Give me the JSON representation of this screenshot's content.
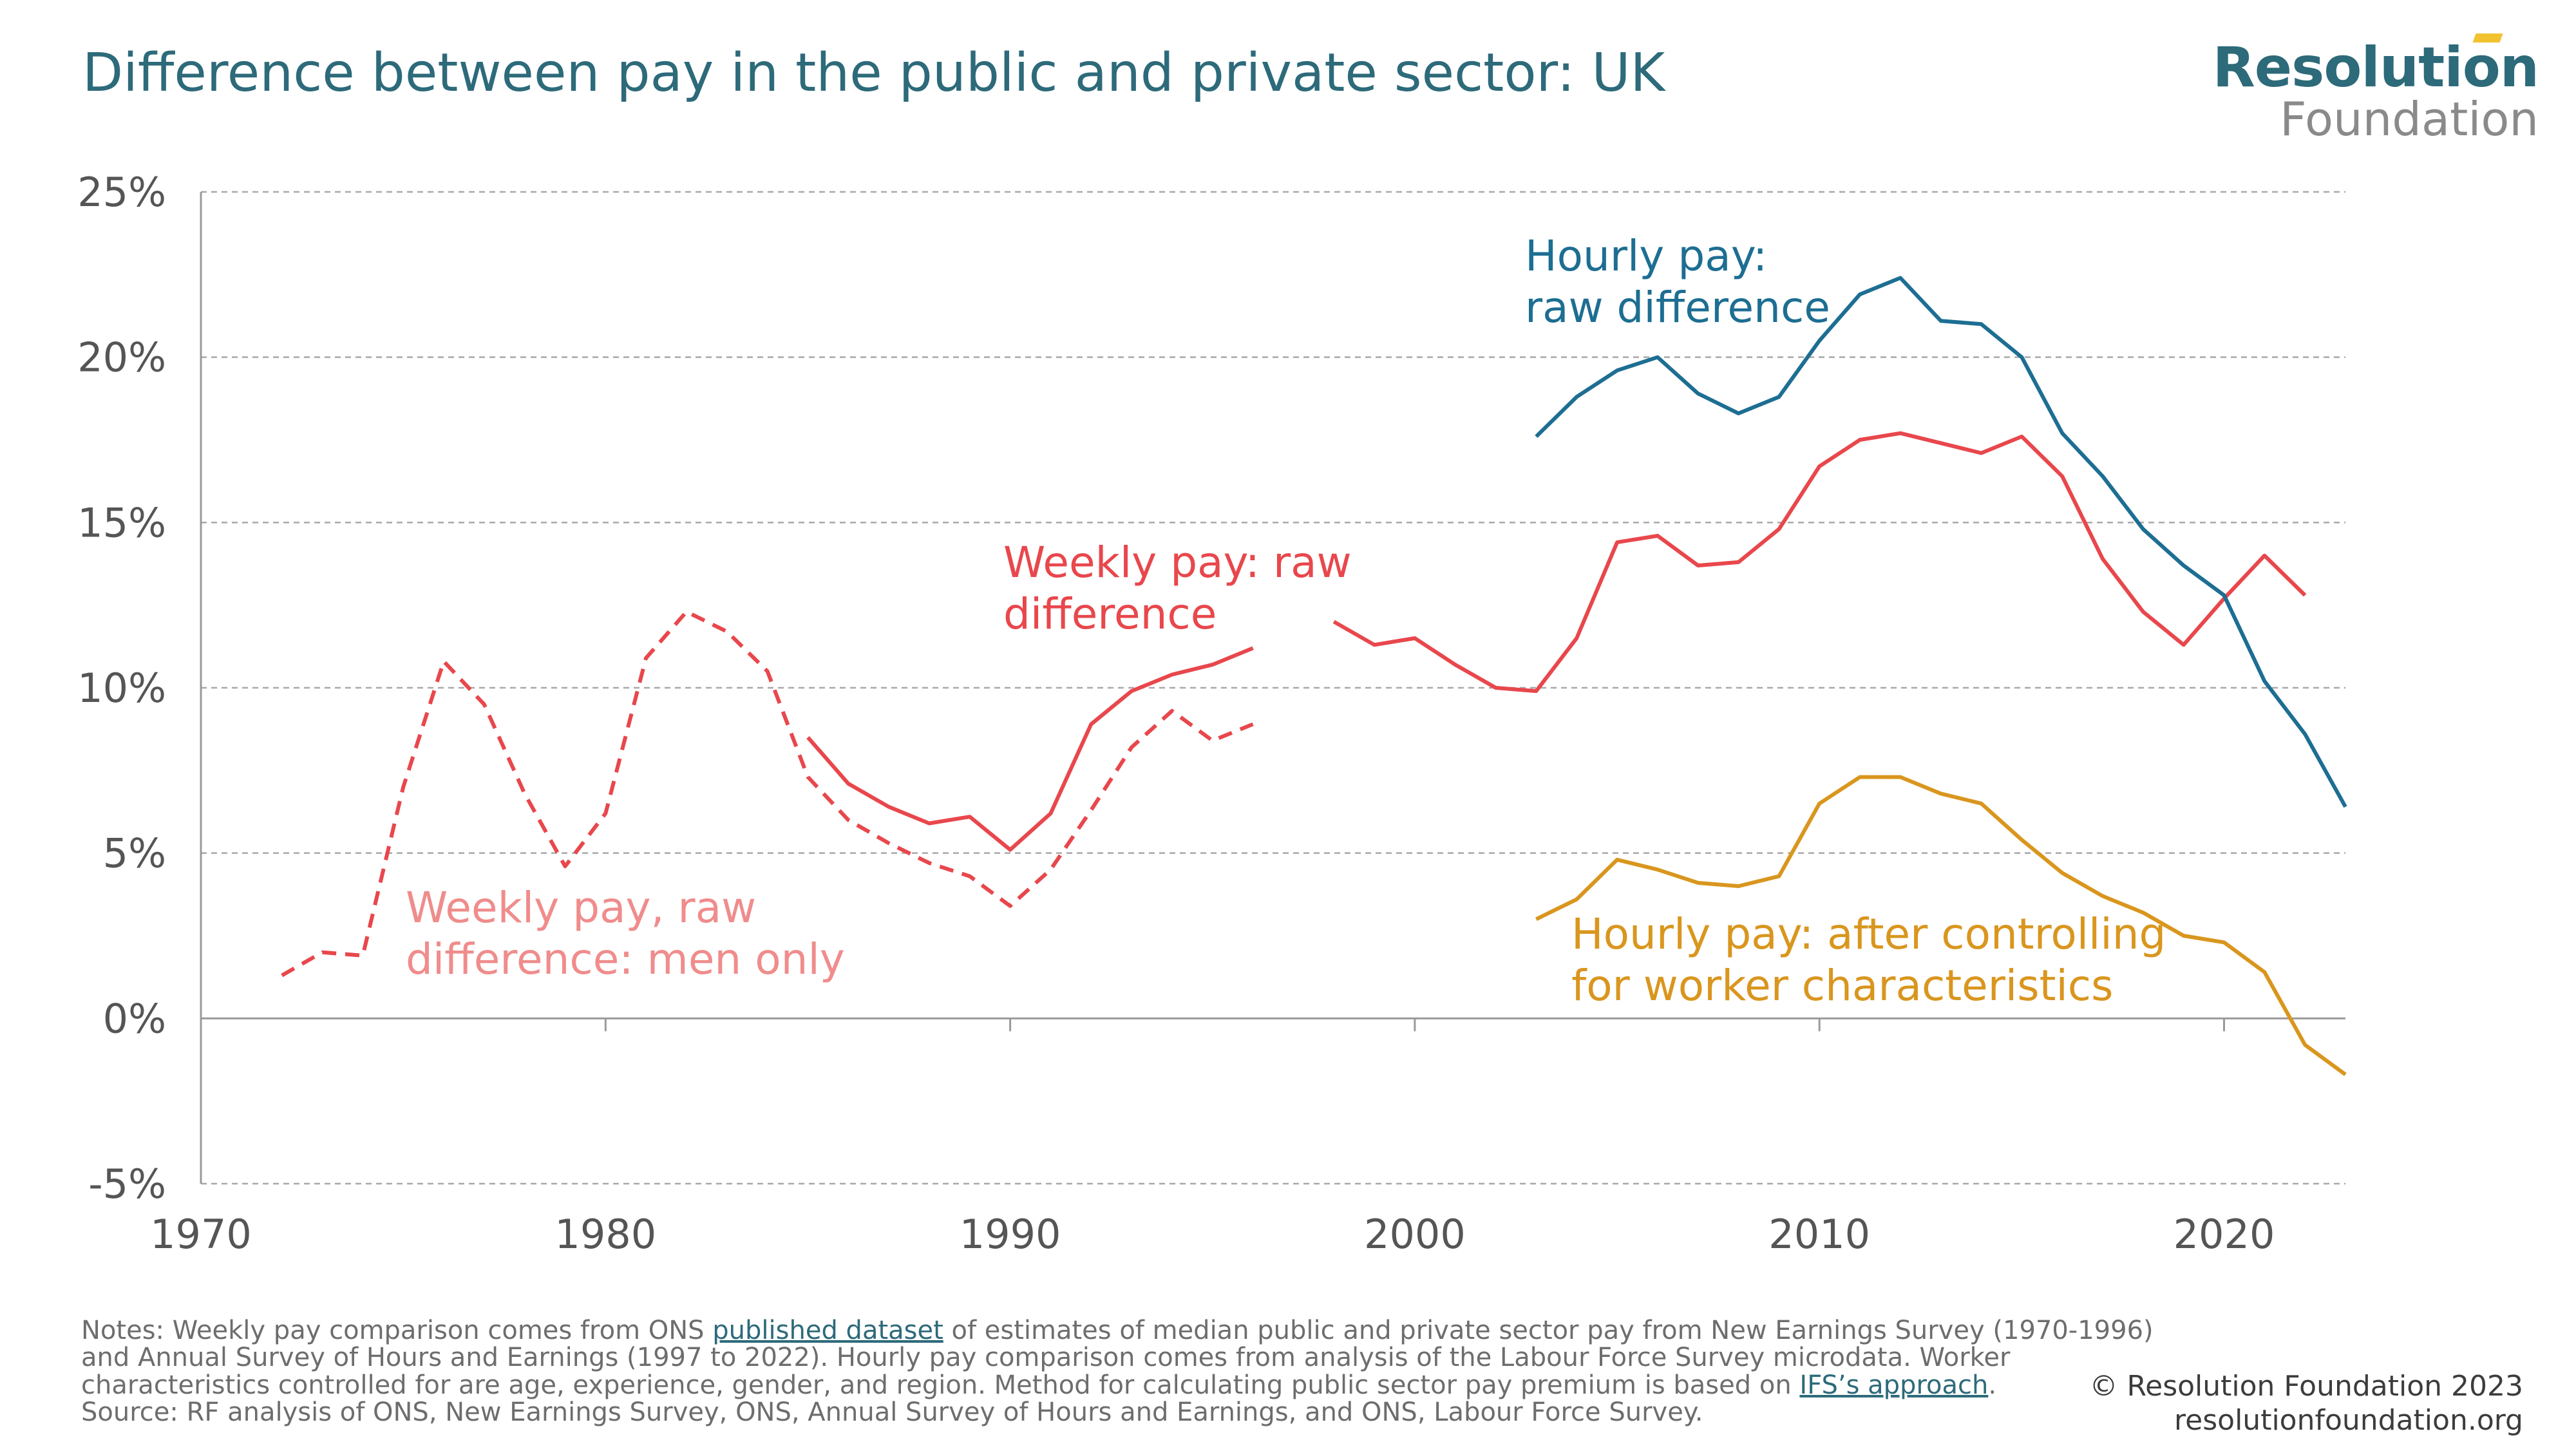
{
  "header": {
    "title": "Difference between pay in the public and private sector: UK",
    "logo_top": "Resolution",
    "logo_bottom": "Foundation"
  },
  "footer": {
    "notes_1": "Notes: Weekly pay comparison comes from ONS ",
    "link_1": "published dataset",
    "notes_2": " of estimates of median public and private sector pay from New Earnings Survey (1970-1996) and Annual Survey of Hours and Earnings (1997 to 2022). Hourly pay comparison comes from analysis of the Labour Force Survey microdata. Worker characteristics controlled for are age, experience, gender, and region. Method for calculating public sector pay premium is based on ",
    "link_2": "IFS’s approach",
    "notes_3": ".",
    "source": "Source: RF analysis of ONS, New Earnings Survey, ONS, Annual Survey of Hours and Earnings, and ONS, Labour Force Survey.",
    "copyright": "© Resolution Foundation 2023",
    "website": "resolutionfoundation.org"
  },
  "chart_data": {
    "type": "line",
    "title": "Difference between pay in the public and private sector: UK",
    "xlabel": "",
    "ylabel": "",
    "xlim": [
      1970,
      2023
    ],
    "ylim": [
      -5,
      25
    ],
    "x_ticks": [
      1970,
      1980,
      1990,
      2000,
      2010,
      2020
    ],
    "y_ticks": [
      25,
      20,
      15,
      10,
      5,
      0,
      -5
    ],
    "y_tick_labels": [
      "25%",
      "20%",
      "15%",
      "10%",
      "5%",
      "0%",
      "-5%"
    ],
    "grid": "horizontal dashed",
    "legend": "direct labels",
    "series": [
      {
        "label_lines": [
          "Weekly pay, raw",
          "difference: men only"
        ],
        "color": "#f08c8c",
        "line_color": "#e8474c",
        "style": "dashed",
        "points": [
          [
            1972,
            1.3
          ],
          [
            1973,
            2.0
          ],
          [
            1974,
            1.9
          ],
          [
            1975,
            7.0
          ],
          [
            1976,
            10.8
          ],
          [
            1977,
            9.5
          ],
          [
            1978,
            6.8
          ],
          [
            1979,
            4.6
          ],
          [
            1980,
            6.2
          ],
          [
            1981,
            10.9
          ],
          [
            1982,
            12.3
          ],
          [
            1983,
            11.7
          ],
          [
            1984,
            10.5
          ],
          [
            1985,
            7.3
          ],
          [
            1986,
            6.0
          ],
          [
            1987,
            5.3
          ],
          [
            1988,
            4.7
          ],
          [
            1989,
            4.3
          ],
          [
            1990,
            3.4
          ],
          [
            1991,
            4.5
          ],
          [
            1992,
            6.3
          ],
          [
            1993,
            8.2
          ],
          [
            1994,
            9.3
          ],
          [
            1995,
            8.4
          ],
          [
            1996,
            8.9
          ]
        ]
      },
      {
        "label_lines": [
          "Weekly pay: raw",
          "difference"
        ],
        "color": "#e8474c",
        "style": "solid",
        "segments": [
          [
            [
              1985,
              8.5
            ],
            [
              1986,
              7.1
            ],
            [
              1987,
              6.4
            ],
            [
              1988,
              5.9
            ],
            [
              1989,
              6.1
            ],
            [
              1990,
              5.1
            ],
            [
              1991,
              6.2
            ],
            [
              1992,
              8.9
            ],
            [
              1993,
              9.9
            ],
            [
              1994,
              10.4
            ],
            [
              1995,
              10.7
            ],
            [
              1996,
              11.2
            ]
          ],
          [
            [
              1998,
              12.0
            ],
            [
              1999,
              11.3
            ],
            [
              2000,
              11.5
            ],
            [
              2001,
              10.7
            ],
            [
              2002,
              10.0
            ],
            [
              2003,
              9.9
            ],
            [
              2004,
              11.5
            ],
            [
              2005,
              14.4
            ],
            [
              2006,
              14.6
            ],
            [
              2007,
              13.7
            ],
            [
              2008,
              13.8
            ],
            [
              2009,
              14.8
            ],
            [
              2010,
              16.7
            ],
            [
              2011,
              17.5
            ],
            [
              2012,
              17.7
            ],
            [
              2013,
              17.4
            ],
            [
              2014,
              17.1
            ],
            [
              2015,
              17.6
            ],
            [
              2016,
              16.4
            ],
            [
              2017,
              13.9
            ],
            [
              2018,
              12.3
            ],
            [
              2019,
              11.3
            ],
            [
              2020,
              12.7
            ],
            [
              2021,
              14.0
            ],
            [
              2022,
              12.8
            ]
          ]
        ]
      },
      {
        "label_lines": [
          "Hourly pay:",
          "raw difference"
        ],
        "color": "#1d6e92",
        "style": "solid",
        "points": [
          [
            2003,
            17.6
          ],
          [
            2004,
            18.8
          ],
          [
            2005,
            19.6
          ],
          [
            2006,
            20.0
          ],
          [
            2007,
            18.9
          ],
          [
            2008,
            18.3
          ],
          [
            2009,
            18.8
          ],
          [
            2010,
            20.5
          ],
          [
            2011,
            21.9
          ],
          [
            2012,
            22.4
          ],
          [
            2013,
            21.1
          ],
          [
            2014,
            21.0
          ],
          [
            2015,
            20.0
          ],
          [
            2016,
            17.7
          ],
          [
            2017,
            16.4
          ],
          [
            2018,
            14.8
          ],
          [
            2019,
            13.7
          ],
          [
            2020,
            12.8
          ],
          [
            2021,
            10.2
          ],
          [
            2022,
            8.6
          ],
          [
            2023,
            6.4
          ]
        ]
      },
      {
        "label_lines": [
          "Hourly pay: after controlling",
          "for worker characteristics"
        ],
        "color": "#d9961e",
        "style": "solid",
        "points": [
          [
            2003,
            3.0
          ],
          [
            2004,
            3.6
          ],
          [
            2005,
            4.8
          ],
          [
            2006,
            4.5
          ],
          [
            2007,
            4.1
          ],
          [
            2008,
            4.0
          ],
          [
            2009,
            4.3
          ],
          [
            2010,
            6.5
          ],
          [
            2011,
            7.3
          ],
          [
            2012,
            7.3
          ],
          [
            2013,
            6.8
          ],
          [
            2014,
            6.5
          ],
          [
            2015,
            5.4
          ],
          [
            2016,
            4.4
          ],
          [
            2017,
            3.7
          ],
          [
            2018,
            3.2
          ],
          [
            2019,
            2.5
          ],
          [
            2020,
            2.3
          ],
          [
            2021,
            1.4
          ],
          [
            2022,
            -0.8
          ],
          [
            2023,
            -1.7
          ]
        ]
      }
    ]
  }
}
